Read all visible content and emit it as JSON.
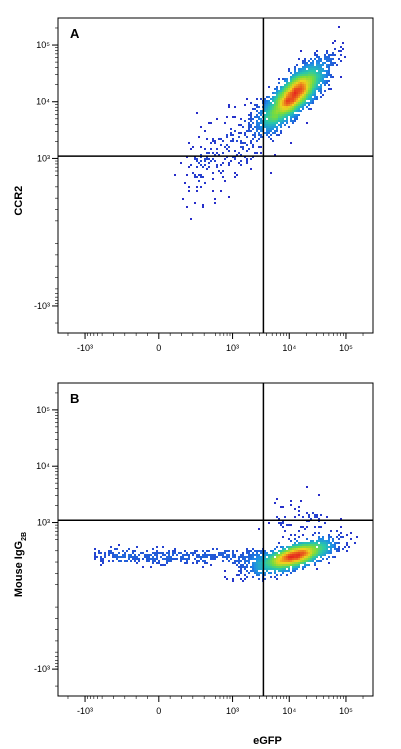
{
  "chart_data": [
    {
      "type": "scatter",
      "panel_label": "A",
      "xlabel": "eGFP",
      "ylabel": "CCR2",
      "ylabel_sub": "",
      "x_scale": "biexponential",
      "y_scale": "biexponential",
      "x_ticks": [
        "-10³",
        "0",
        "10³",
        "10⁴",
        "10⁵"
      ],
      "y_ticks": [
        "10⁵",
        "10⁴",
        "10³",
        "-10³"
      ],
      "quadrant_gate": {
        "x": 3500,
        "y": 1100
      },
      "clusters": [
        {
          "role": "main population",
          "x_center": 12000,
          "y_center": 13000,
          "density": "high"
        },
        {
          "role": "scattered events",
          "x_range": [
            300,
            4000
          ],
          "y_range": [
            500,
            5000
          ],
          "density": "low"
        }
      ],
      "grid": false,
      "legend": "none"
    },
    {
      "type": "scatter",
      "panel_label": "B",
      "xlabel": "eGFP",
      "ylabel": "Mouse IgG",
      "ylabel_sub": "2B",
      "x_scale": "biexponential",
      "y_scale": "biexponential",
      "x_ticks": [
        "-10³",
        "0",
        "10³",
        "10⁴",
        "10⁵"
      ],
      "y_ticks": [
        "10⁵",
        "10⁴",
        "10³",
        "-10³"
      ],
      "quadrant_gate": {
        "x": 3500,
        "y": 1100
      },
      "clusters": [
        {
          "role": "main population",
          "x_center": 12000,
          "y_center": 350,
          "density": "high"
        },
        {
          "role": "low-eGFP tail",
          "x_range": [
            -1000,
            3500
          ],
          "y_range": [
            250,
            450
          ],
          "density": "low"
        }
      ],
      "grid": false,
      "legend": "none"
    }
  ]
}
